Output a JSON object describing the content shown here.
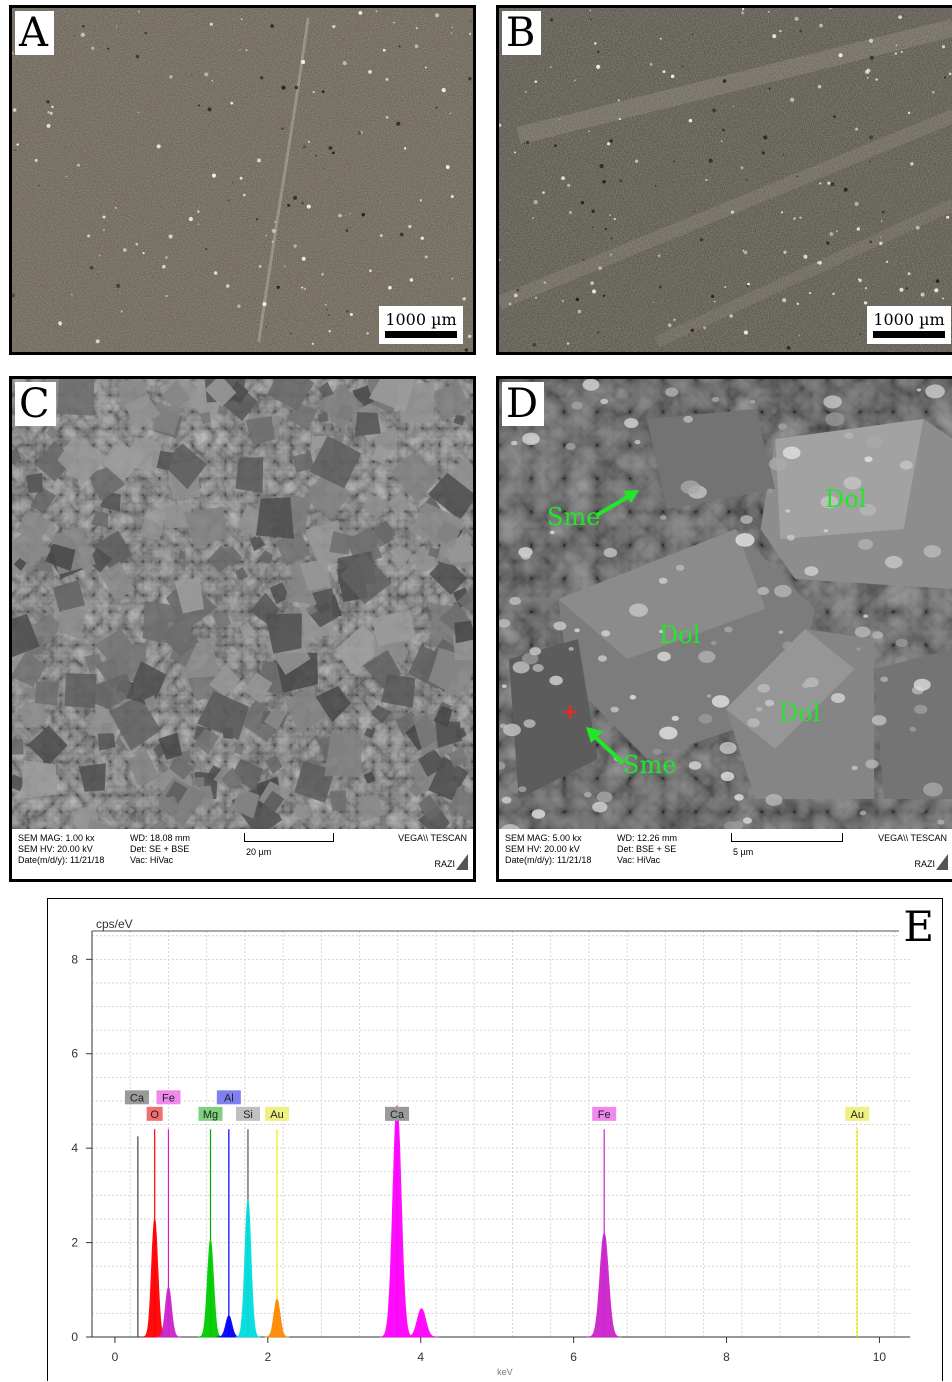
{
  "panels": {
    "a": {
      "letter": "A",
      "scale": "1000 µm"
    },
    "b": {
      "letter": "B",
      "scale": "1000 µm"
    },
    "c": {
      "letter": "C",
      "sem": {
        "mag": "SEM MAG: 1.00 kx",
        "hv": "SEM HV: 20.00 kV",
        "date": "Date(m/d/y): 11/21/18",
        "wd": "WD: 18.08 mm",
        "det": "Det: SE + BSE",
        "vac": "Vac: HiVac",
        "scale": "20 µm",
        "brand": "VEGA\\\\ TESCAN",
        "lab": "RAZI"
      }
    },
    "d": {
      "letter": "D",
      "sem": {
        "mag": "SEM MAG: 5.00 kx",
        "hv": "SEM HV: 20.00 kV",
        "date": "Date(m/d/y): 11/21/18",
        "wd": "WD: 12.26 mm",
        "det": "Det: BSE + SE",
        "vac": "Vac: HiVac",
        "scale": "5 µm",
        "brand": "VEGA\\\\ TESCAN",
        "lab": "RAZI"
      },
      "labels": {
        "sme1": "Sme",
        "sme2": "Sme",
        "dol1": "Dol",
        "dol2": "Dol",
        "dol3": "Dol"
      }
    },
    "e": {
      "letter": "E",
      "ylabel": "cps/eV"
    }
  },
  "chart_data": {
    "type": "line",
    "title": "",
    "xlabel": "keV",
    "ylabel": "cps/eV",
    "xlim": [
      -0.3,
      10.4
    ],
    "ylim": [
      0,
      8.6
    ],
    "xticks": [
      0,
      2,
      4,
      6,
      8,
      10
    ],
    "yticks": [
      0,
      2,
      4,
      6,
      8
    ],
    "grid": true,
    "series": [
      {
        "name": "Ca",
        "color": "#ff00ff",
        "peaks": [
          [
            3.69,
            4.9
          ],
          [
            4.01,
            0.6
          ]
        ]
      },
      {
        "name": "O",
        "color": "#ff0000",
        "peaks": [
          [
            0.52,
            2.5
          ]
        ]
      },
      {
        "name": "Mg",
        "color": "#00cc00",
        "peaks": [
          [
            1.25,
            2.05
          ]
        ]
      },
      {
        "name": "Al",
        "color": "#0000ff",
        "peaks": [
          [
            1.49,
            0.45
          ]
        ]
      },
      {
        "name": "Si",
        "color": "#00dddd",
        "peaks": [
          [
            1.74,
            2.9
          ]
        ]
      },
      {
        "name": "Au",
        "color": "#ff8800",
        "peaks": [
          [
            2.12,
            0.8
          ]
        ]
      },
      {
        "name": "Fe",
        "color": "#cc22cc",
        "peaks": [
          [
            0.7,
            1.05
          ],
          [
            6.4,
            2.2
          ]
        ]
      }
    ],
    "element_labels": [
      {
        "text": "Ca",
        "x": 0.34,
        "row": 1,
        "color": "#9a9a9a"
      },
      {
        "text": "Fe",
        "x": 0.7,
        "row": 1,
        "color": "#f088f0"
      },
      {
        "text": "O",
        "x": 0.52,
        "row": 2,
        "color": "#f07070"
      },
      {
        "text": "Al",
        "x": 1.49,
        "row": 1,
        "color": "#8080f0"
      },
      {
        "text": "Mg",
        "x": 1.25,
        "row": 2,
        "color": "#80d080"
      },
      {
        "text": "Si",
        "x": 1.74,
        "row": 2,
        "color": "#c0c0c0"
      },
      {
        "text": "Au",
        "x": 2.12,
        "row": 2,
        "color": "#f0f080"
      },
      {
        "text": "Ca",
        "x": 3.69,
        "row": 2,
        "color": "#9a9a9a"
      },
      {
        "text": "Fe",
        "x": 6.4,
        "row": 2,
        "color": "#f088f0"
      },
      {
        "text": "Au",
        "x": 9.71,
        "row": 2,
        "color": "#f0f080"
      }
    ],
    "lines": [
      {
        "x": 0.3,
        "y": 4.25,
        "color": "#444444"
      },
      {
        "x": 0.52,
        "y": 4.4,
        "color": "#ff0000"
      },
      {
        "x": 0.7,
        "y": 4.4,
        "color": "#cc22cc"
      },
      {
        "x": 1.25,
        "y": 4.4,
        "color": "#00aa00"
      },
      {
        "x": 1.49,
        "y": 4.4,
        "color": "#0000ff"
      },
      {
        "x": 1.74,
        "y": 4.4,
        "color": "#555555"
      },
      {
        "x": 2.12,
        "y": 4.4,
        "color": "#eeee00"
      },
      {
        "x": 3.69,
        "y": 4.4,
        "color": "#444444"
      },
      {
        "x": 6.4,
        "y": 4.4,
        "color": "#cc22cc"
      },
      {
        "x": 9.71,
        "y": 4.4,
        "color": "#eeee00"
      }
    ]
  }
}
